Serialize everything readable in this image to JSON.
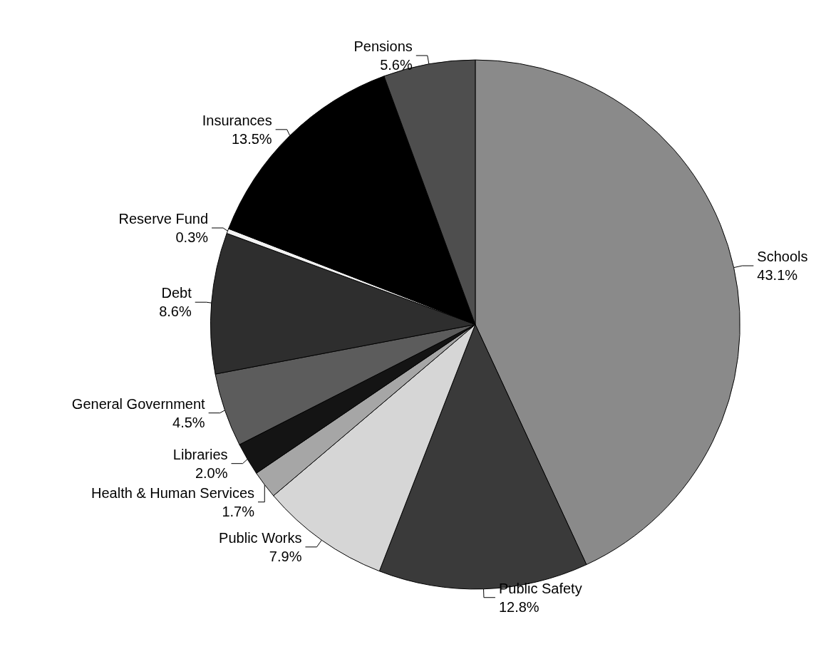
{
  "chart_data": {
    "type": "pie",
    "categories": [
      "Schools",
      "Public Safety",
      "Public Works",
      "Health & Human Services",
      "Libraries",
      "General Government",
      "Debt",
      "Reserve Fund",
      "Insurances",
      "Pensions"
    ],
    "values": [
      43.1,
      12.8,
      7.9,
      1.7,
      2.0,
      4.5,
      8.6,
      0.3,
      13.5,
      5.6
    ],
    "value_labels": [
      "43.1%",
      "12.8%",
      "7.9%",
      "1.7%",
      "2.0%",
      "4.5%",
      "8.6%",
      "0.3%",
      "13.5%",
      "5.6%"
    ],
    "colors": [
      "#8a8a8a",
      "#3a3a3a",
      "#d6d6d6",
      "#a6a6a6",
      "#141414",
      "#5c5c5c",
      "#2e2e2e",
      "#f2f2f2",
      "#000000",
      "#4e4e4e"
    ],
    "legend": false
  }
}
